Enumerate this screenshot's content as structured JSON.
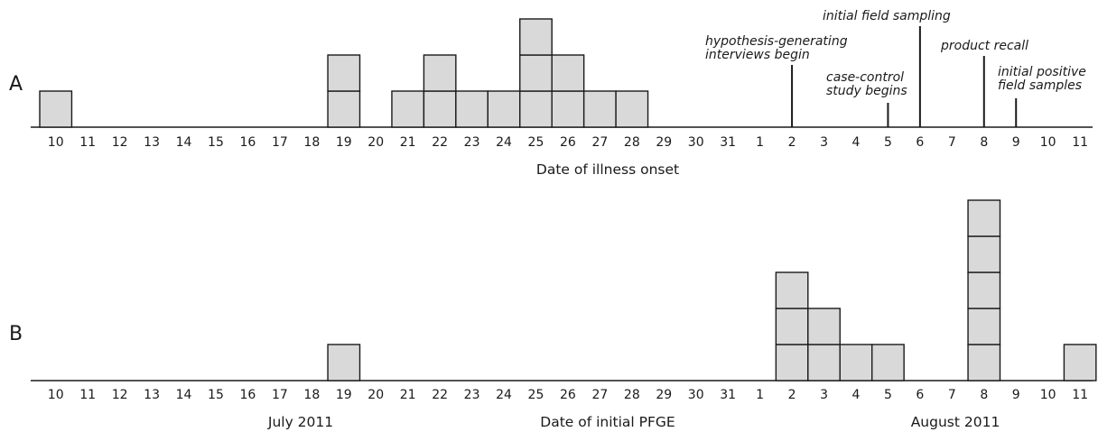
{
  "chart_data": [
    {
      "type": "bar",
      "panel": "A",
      "xlabel": "Date of illness onset",
      "categories": [
        "10",
        "11",
        "12",
        "13",
        "14",
        "15",
        "16",
        "17",
        "18",
        "19",
        "20",
        "21",
        "22",
        "23",
        "24",
        "25",
        "26",
        "27",
        "28",
        "29",
        "30",
        "31",
        "1",
        "2",
        "3",
        "4",
        "5",
        "6",
        "7",
        "8",
        "9",
        "10",
        "11"
      ],
      "values": [
        1,
        0,
        0,
        0,
        0,
        0,
        0,
        0,
        0,
        2,
        0,
        1,
        2,
        1,
        1,
        3,
        2,
        1,
        1,
        0,
        0,
        0,
        0,
        0,
        0,
        0,
        0,
        0,
        0,
        0,
        0,
        0,
        0
      ],
      "annotations": [
        {
          "category_index": 23,
          "label_lines": [
            "hypothesis-generating",
            "interviews begin"
          ]
        },
        {
          "category_index": 26,
          "label_lines": [
            "case-control",
            "study begins"
          ]
        },
        {
          "category_index": 27,
          "label_lines": [
            "initial field sampling"
          ]
        },
        {
          "category_index": 29,
          "label_lines": [
            "product recall"
          ]
        },
        {
          "category_index": 30,
          "label_lines": [
            "initial positive",
            "field samples"
          ]
        }
      ]
    },
    {
      "type": "bar",
      "panel": "B",
      "xlabel": "Date of initial PFGE",
      "month_labels": [
        "July 2011",
        "August 2011"
      ],
      "categories": [
        "10",
        "11",
        "12",
        "13",
        "14",
        "15",
        "16",
        "17",
        "18",
        "19",
        "20",
        "21",
        "22",
        "23",
        "24",
        "25",
        "26",
        "27",
        "28",
        "29",
        "30",
        "31",
        "1",
        "2",
        "3",
        "4",
        "5",
        "6",
        "7",
        "8",
        "9",
        "10",
        "11"
      ],
      "values": [
        0,
        0,
        0,
        0,
        0,
        0,
        0,
        0,
        0,
        1,
        0,
        0,
        0,
        0,
        0,
        0,
        0,
        0,
        0,
        0,
        0,
        0,
        0,
        3,
        2,
        1,
        1,
        0,
        0,
        5,
        0,
        0,
        1
      ]
    }
  ]
}
